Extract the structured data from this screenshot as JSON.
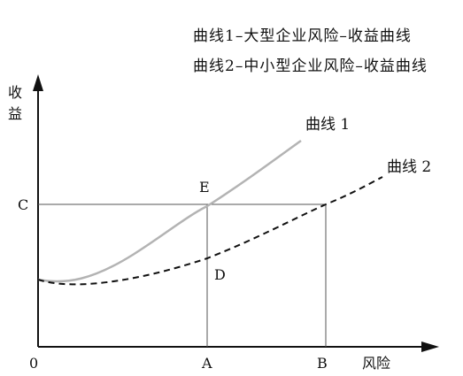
{
  "legend": {
    "line1": "曲线1–大型企业风险–收益曲线",
    "line2": "曲线2–中小型企业风险–收益曲线"
  },
  "axes": {
    "y_label": "收\n益",
    "y_label_char1": "收",
    "y_label_char2": "益",
    "x_label": "风险",
    "origin": "0"
  },
  "points": {
    "C": "C",
    "E": "E",
    "D": "D",
    "A": "A",
    "B": "B"
  },
  "curves": {
    "curve1_label": "曲线 1",
    "curve2_label": "曲线 2"
  },
  "colors": {
    "curve1": "#b3b3b3",
    "curve2": "#111111",
    "axes": "#111111",
    "guides": "#666666"
  }
}
